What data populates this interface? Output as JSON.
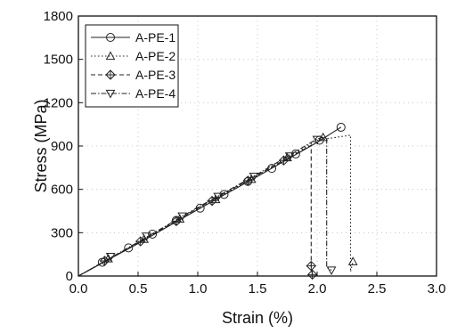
{
  "chart_data": {
    "type": "line",
    "title": "",
    "xlabel": "Strain (%)",
    "ylabel": "Stress (MPa)",
    "xlim": [
      0,
      3.0
    ],
    "ylim": [
      0,
      1800
    ],
    "xticks": [
      0,
      0.5,
      1.0,
      1.5,
      2.0,
      2.5,
      3.0
    ],
    "xtick_labels": [
      "0.0",
      "0.5",
      "1.0",
      "1.5",
      "2.0",
      "2.5",
      "3.0"
    ],
    "yticks": [
      0,
      300,
      600,
      900,
      1200,
      1500,
      1800
    ],
    "ytick_labels": [
      "0",
      "300",
      "600",
      "900",
      "1200",
      "1500",
      "1800"
    ],
    "grid": "dotted",
    "legend_position": "top-left",
    "series": [
      {
        "name": "A-PE-1",
        "marker": "circle",
        "dash": "solid",
        "line": [
          [
            0,
            0
          ],
          [
            0.5,
            225
          ],
          [
            1.0,
            460
          ],
          [
            1.5,
            690
          ],
          [
            2.0,
            925
          ],
          [
            2.2,
            1030
          ]
        ],
        "markers": [
          [
            0.2,
            95
          ],
          [
            0.42,
            195
          ],
          [
            0.62,
            290
          ],
          [
            0.82,
            385
          ],
          [
            1.02,
            470
          ],
          [
            1.22,
            565
          ],
          [
            1.42,
            655
          ],
          [
            1.62,
            745
          ],
          [
            1.82,
            845
          ],
          [
            2.02,
            940
          ],
          [
            2.2,
            1030
          ]
        ]
      },
      {
        "name": "A-PE-2",
        "marker": "triangle-up",
        "dash": "dotted",
        "line": [
          [
            0,
            0
          ],
          [
            0.5,
            230
          ],
          [
            1.0,
            465
          ],
          [
            1.5,
            695
          ],
          [
            2.0,
            940
          ],
          [
            2.28,
            975
          ],
          [
            2.28,
            30
          ],
          [
            2.3,
            100
          ]
        ],
        "markers": [
          [
            0.25,
            120
          ],
          [
            0.55,
            255
          ],
          [
            0.85,
            395
          ],
          [
            1.15,
            530
          ],
          [
            1.45,
            670
          ],
          [
            1.75,
            820
          ],
          [
            2.05,
            960
          ],
          [
            2.3,
            100
          ]
        ]
      },
      {
        "name": "A-PE-3",
        "marker": "diamond",
        "dash": "dashed",
        "line": [
          [
            0,
            0
          ],
          [
            0.5,
            230
          ],
          [
            1.0,
            470
          ],
          [
            1.5,
            700
          ],
          [
            1.95,
            905
          ],
          [
            1.95,
            70
          ],
          [
            1.96,
            10
          ]
        ],
        "markers": [
          [
            0.22,
            105
          ],
          [
            0.52,
            240
          ],
          [
            0.82,
            380
          ],
          [
            1.12,
            520
          ],
          [
            1.42,
            660
          ],
          [
            1.72,
            800
          ],
          [
            1.95,
            70
          ],
          [
            1.96,
            10
          ]
        ]
      },
      {
        "name": "A-PE-4",
        "marker": "triangle-down",
        "dash": "dash-dot",
        "line": [
          [
            0,
            0
          ],
          [
            0.5,
            235
          ],
          [
            1.0,
            475
          ],
          [
            1.5,
            705
          ],
          [
            2.0,
            950
          ],
          [
            2.08,
            965
          ],
          [
            2.08,
            60
          ],
          [
            2.12,
            40
          ]
        ],
        "markers": [
          [
            0.27,
            135
          ],
          [
            0.57,
            275
          ],
          [
            0.87,
            415
          ],
          [
            1.17,
            550
          ],
          [
            1.47,
            690
          ],
          [
            1.77,
            830
          ],
          [
            2.0,
            945
          ],
          [
            2.12,
            40
          ]
        ]
      }
    ]
  }
}
